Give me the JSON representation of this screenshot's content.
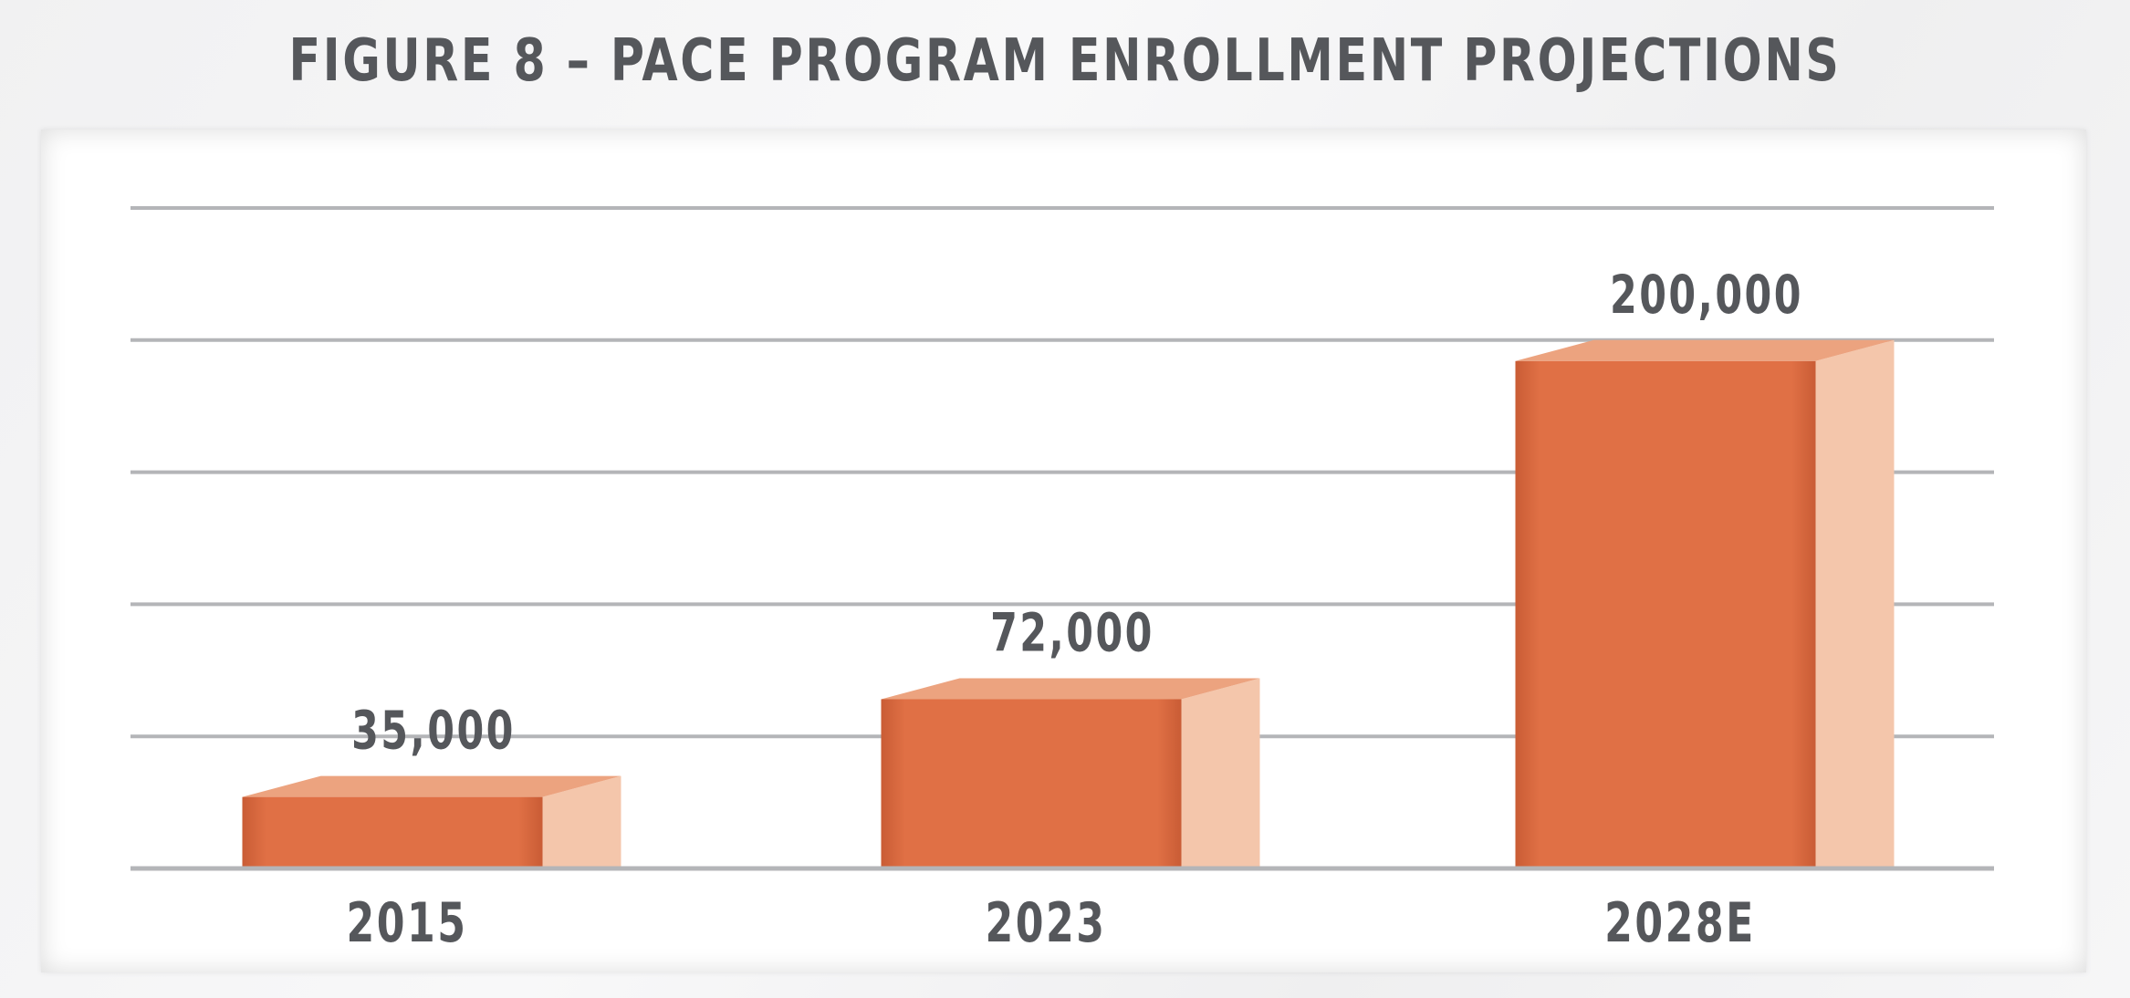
{
  "title": "FIGURE 8 – PACE PROGRAM ENROLLMENT PROJECTIONS",
  "chart_data": {
    "type": "bar",
    "title": "FIGURE 8 – PACE PROGRAM ENROLLMENT PROJECTIONS",
    "categories": [
      "2015",
      "2023",
      "2028E"
    ],
    "values": [
      35000,
      72000,
      200000
    ],
    "value_labels": [
      "35,000",
      "72,000",
      "200,000"
    ],
    "xlabel": "",
    "ylabel": "",
    "ylim": [
      0,
      250000
    ],
    "gridlines": [
      0,
      50000,
      100000,
      150000,
      200000,
      250000
    ],
    "grid": true,
    "legend": "none",
    "colors": {
      "bar_front": "#e07045",
      "bar_top": "#eca37f",
      "bar_side": "#f4c6ab",
      "grid": "#b4b5b8",
      "text": "#55575b"
    }
  }
}
